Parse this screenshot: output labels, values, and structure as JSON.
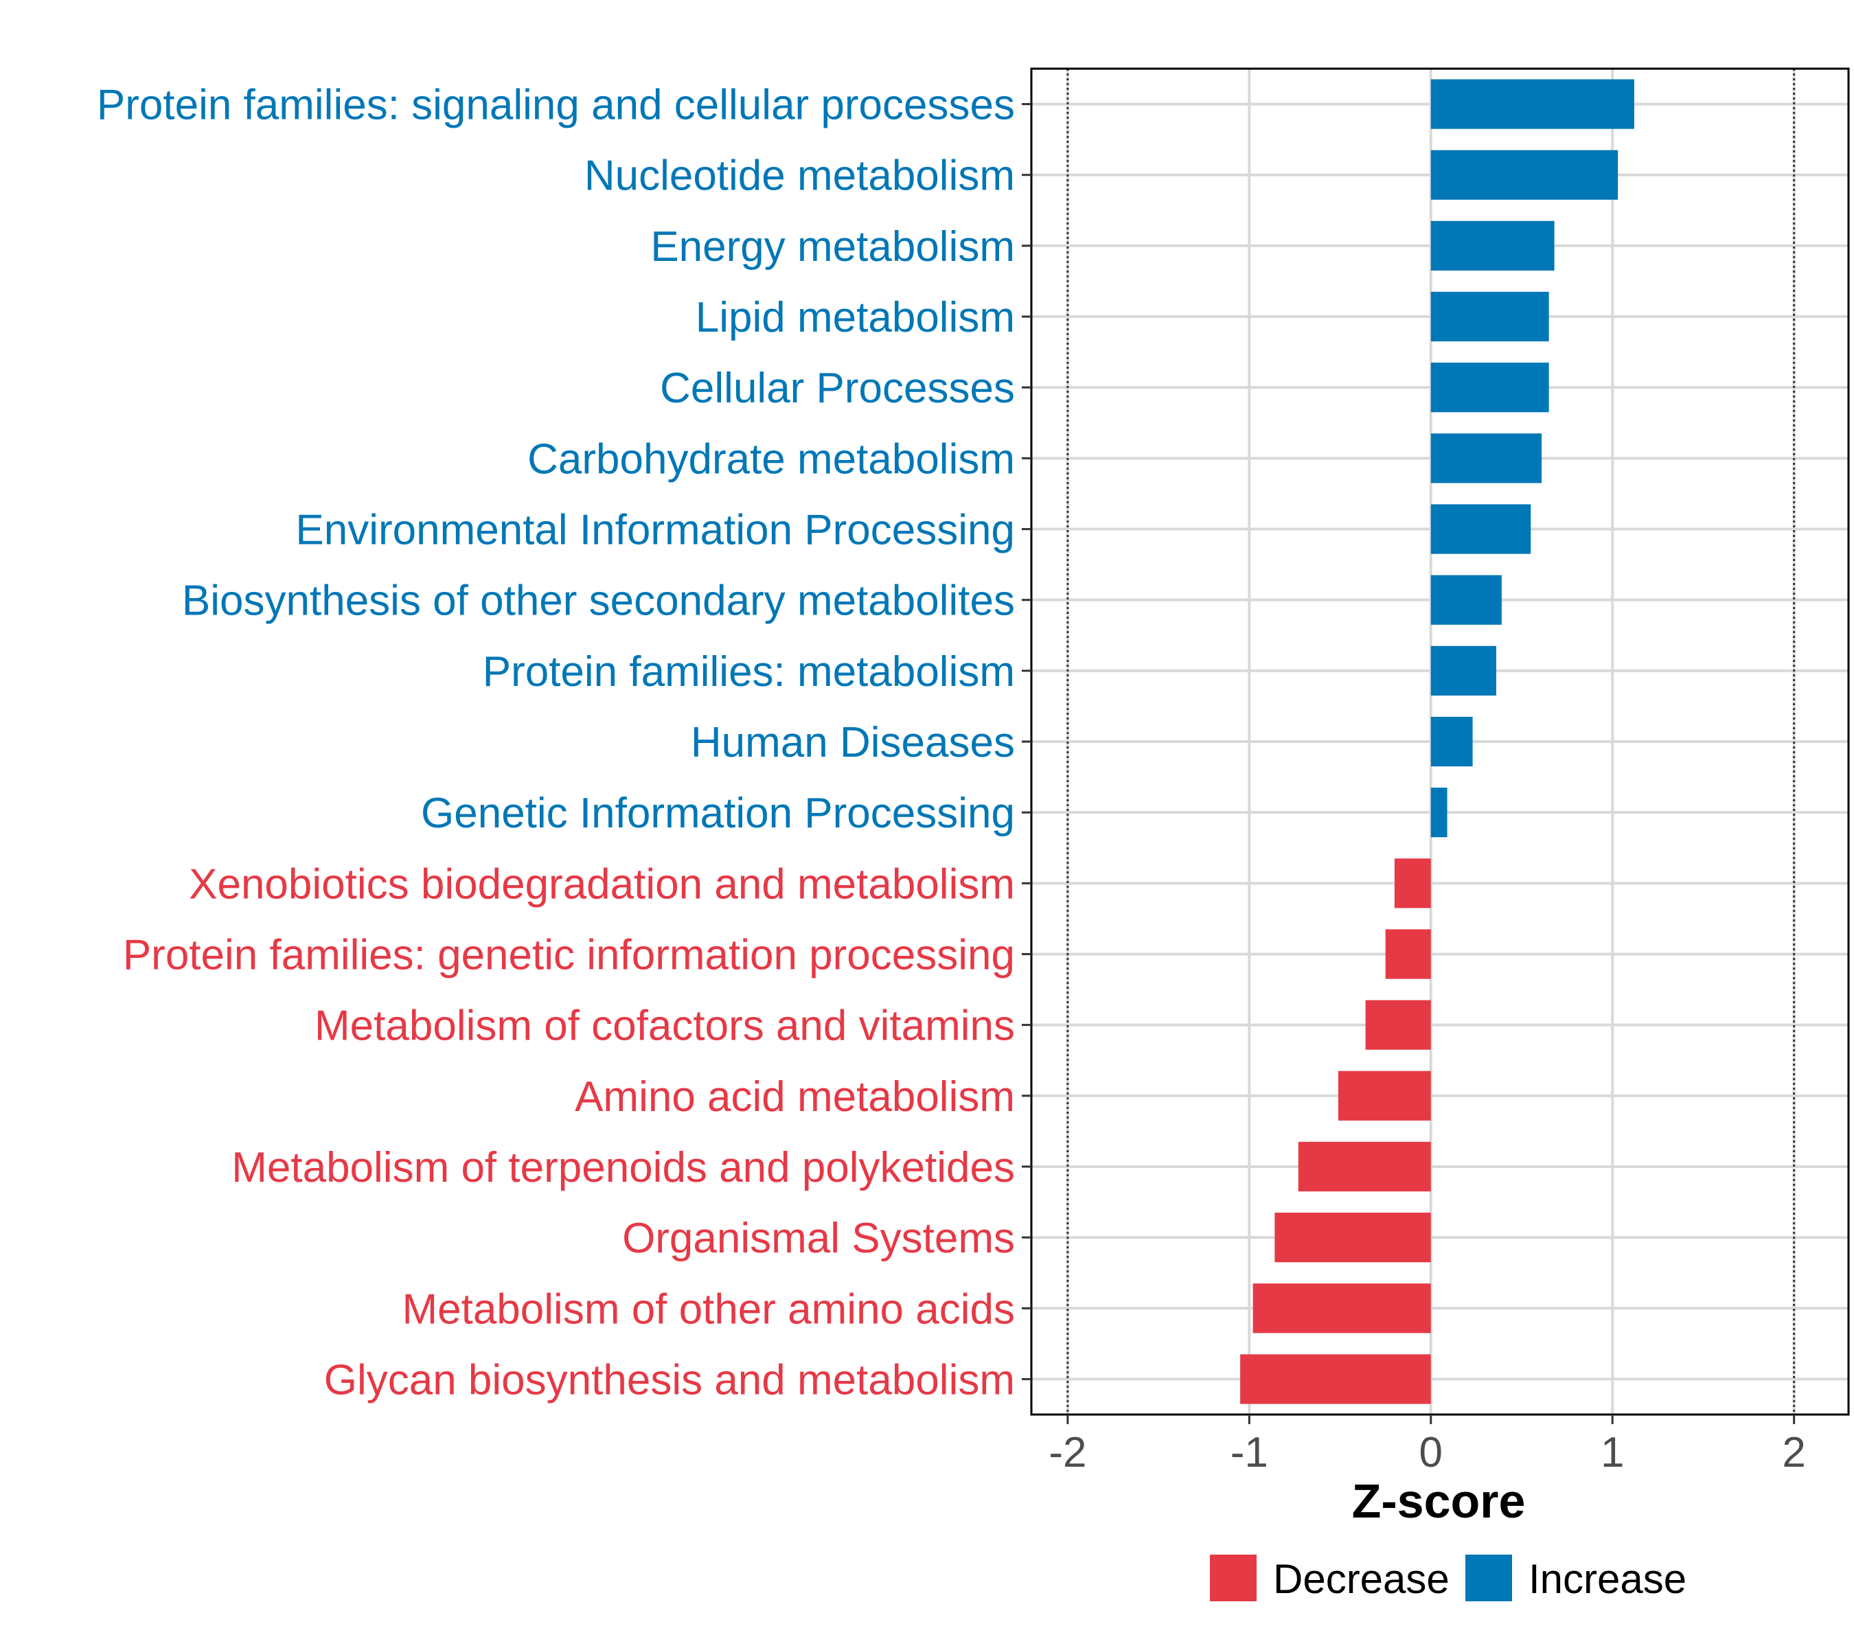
{
  "chart_data": {
    "type": "bar",
    "orientation": "horizontal",
    "title": "",
    "xlabel": "Z-score",
    "ylabel": "",
    "xlim": [
      -2.2,
      2.3
    ],
    "xticks": [
      -2,
      -1,
      0,
      1,
      2
    ],
    "xtick_labels": [
      "-2",
      "-1",
      "0",
      "1",
      "2"
    ],
    "reference_lines": [
      -2,
      2
    ],
    "grid": true,
    "legend_position": "bottom",
    "legend": [
      {
        "name": "Decrease",
        "color": "#e63946"
      },
      {
        "name": "Increase",
        "color": "#0077b6"
      }
    ],
    "categories": [
      "Protein families: signaling and cellular processes",
      "Nucleotide metabolism",
      "Energy metabolism",
      "Lipid metabolism",
      "Cellular Processes",
      "Carbohydrate metabolism",
      "Environmental Information Processing",
      "Biosynthesis of other secondary metabolites",
      "Protein families: metabolism",
      "Human Diseases",
      "Genetic Information Processing",
      "Xenobiotics biodegradation and metabolism",
      "Protein families: genetic information processing",
      "Metabolism of cofactors and vitamins",
      "Amino acid metabolism",
      "Metabolism of terpenoids and polyketides",
      "Organismal Systems",
      "Metabolism of other amino acids",
      "Glycan biosynthesis and metabolism"
    ],
    "values": [
      1.12,
      1.03,
      0.68,
      0.65,
      0.65,
      0.61,
      0.55,
      0.39,
      0.36,
      0.23,
      0.09,
      -0.2,
      -0.25,
      -0.36,
      -0.51,
      -0.73,
      -0.86,
      -0.98,
      -1.05
    ],
    "groups": [
      "Increase",
      "Increase",
      "Increase",
      "Increase",
      "Increase",
      "Increase",
      "Increase",
      "Increase",
      "Increase",
      "Increase",
      "Increase",
      "Decrease",
      "Decrease",
      "Decrease",
      "Decrease",
      "Decrease",
      "Decrease",
      "Decrease",
      "Decrease"
    ]
  }
}
